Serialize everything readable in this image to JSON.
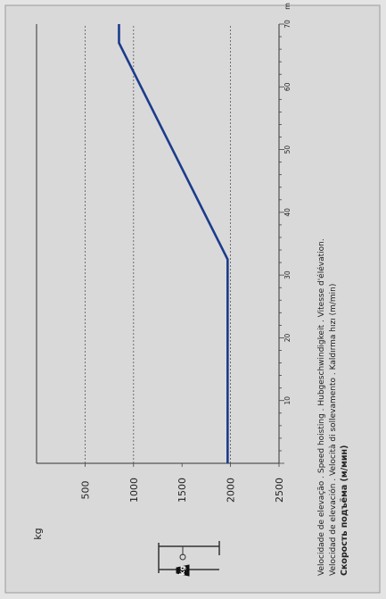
{
  "chart_data": {
    "type": "line",
    "ylabel": "kg",
    "xlabel_lines": [
      "Velocidade de elevação . Speed hoisting . Hubgeschwindigkeit . Vitesse d'élévation.",
      "Velocidad de elevación . Velocità di sollevamento . Kaldırma hızı  (m/min)",
      "Скорость подъёма (м/мин)"
    ],
    "x_unit": "m",
    "x_ticks": [
      "10",
      "20",
      "30",
      "40",
      "50",
      "60",
      "70"
    ],
    "y_ticks": [
      "500",
      "1000",
      "1500",
      "2000",
      "2500"
    ],
    "xlim": [
      0,
      70
    ],
    "ylim": [
      0,
      2500
    ],
    "grid_y": [
      500,
      1000,
      2000
    ],
    "series": [
      {
        "color": "#1c3b8c",
        "x": [
          0,
          32.5,
          67,
          70
        ],
        "y": [
          1970,
          1970,
          850,
          850
        ]
      }
    ],
    "icon": {
      "name": "hoist-weight-icon",
      "weight_label": "kg"
    }
  }
}
